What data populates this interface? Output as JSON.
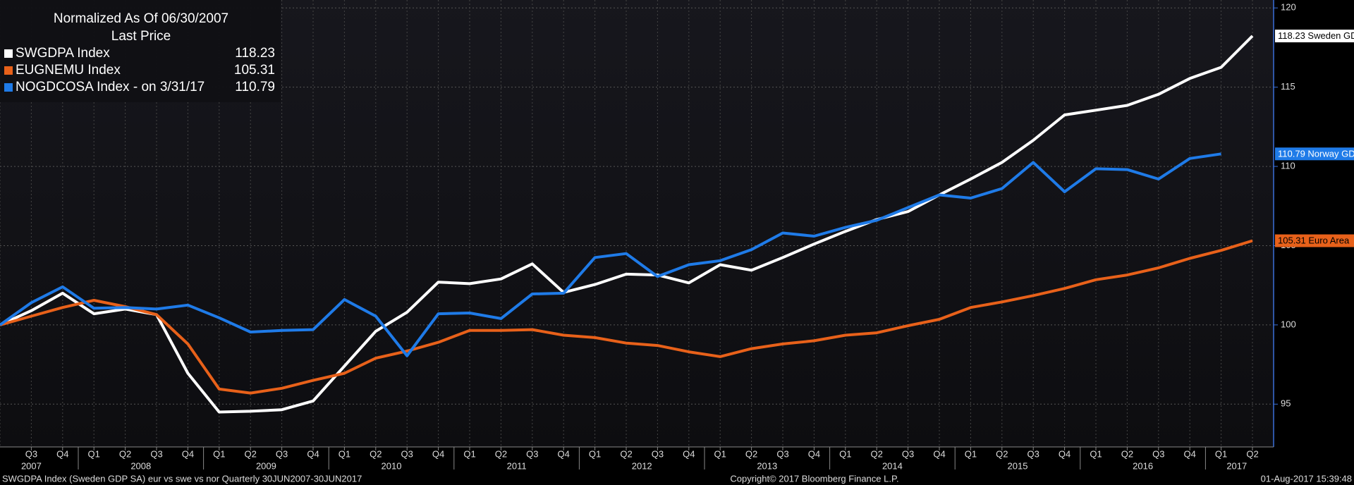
{
  "chart_data": {
    "type": "line",
    "legend_title": "Normalized As Of 06/30/2007",
    "legend_subtitle": "Last Price",
    "categories": [
      null,
      "Q3",
      "Q4",
      "Q1",
      "Q2",
      "Q3",
      "Q4",
      "Q1",
      "Q2",
      "Q3",
      "Q4",
      "Q1",
      "Q2",
      "Q3",
      "Q4",
      "Q1",
      "Q2",
      "Q3",
      "Q4",
      "Q1",
      "Q2",
      "Q3",
      "Q4",
      "Q1",
      "Q2",
      "Q3",
      "Q4",
      "Q1",
      "Q2",
      "Q3",
      "Q4",
      "Q1",
      "Q2",
      "Q3",
      "Q4",
      "Q1",
      "Q2",
      "Q3",
      "Q4",
      "Q1",
      "Q2"
    ],
    "years": [
      "2007",
      "2008",
      "2009",
      "2010",
      "2011",
      "2012",
      "2013",
      "2014",
      "2015",
      "2016",
      "2017"
    ],
    "ylim": [
      92.3,
      120.5
    ],
    "yticks": [
      95,
      100,
      105,
      110,
      115,
      120
    ],
    "grid": true,
    "series": [
      {
        "name": "SWGDPA Index",
        "tag": "Sweden GD",
        "color": "#ffffff",
        "values": [
          100,
          100.9,
          102.0,
          100.7,
          101.0,
          100.65,
          96.95,
          94.5,
          94.55,
          94.65,
          95.2,
          97.4,
          99.6,
          100.8,
          102.7,
          102.6,
          102.9,
          103.85,
          102.05,
          102.55,
          103.2,
          103.15,
          102.65,
          103.8,
          103.45,
          104.25,
          105.1,
          105.9,
          106.65,
          107.15,
          108.2,
          109.2,
          110.25,
          111.65,
          113.25,
          113.55,
          113.85,
          114.55,
          115.55,
          116.25,
          118.23
        ]
      },
      {
        "name": "EUGNEMU Index",
        "tag": "Euro Area",
        "color": "#e8611a",
        "values": [
          100,
          100.55,
          101.1,
          101.55,
          101.15,
          100.65,
          98.8,
          95.95,
          95.7,
          96.0,
          96.5,
          96.95,
          97.9,
          98.35,
          98.9,
          99.65,
          99.65,
          99.7,
          99.35,
          99.2,
          98.85,
          98.7,
          98.3,
          98.0,
          98.5,
          98.8,
          99.0,
          99.35,
          99.5,
          99.95,
          100.35,
          101.1,
          101.45,
          101.85,
          102.3,
          102.85,
          103.15,
          103.6,
          104.2,
          104.7,
          105.31
        ]
      },
      {
        "name": "NOGDCOSA Index -  on 3/31/17",
        "tag": "Norway GD",
        "color": "#1f7be8",
        "values": [
          100,
          101.4,
          102.4,
          101.05,
          101.1,
          101.0,
          101.25,
          100.45,
          99.55,
          99.65,
          99.7,
          101.6,
          100.55,
          98.05,
          100.7,
          100.75,
          100.4,
          101.95,
          102.0,
          104.25,
          104.5,
          103.05,
          103.8,
          104.05,
          104.75,
          105.8,
          105.6,
          106.15,
          106.6,
          107.4,
          108.2,
          108.0,
          108.6,
          110.25,
          108.4,
          109.85,
          109.8,
          109.2,
          110.5,
          110.79,
          null
        ]
      }
    ],
    "footer_left": "SWGDPA Index (Sweden GDP SA) eur vs swe vs nor  Quarterly 30JUN2007-30JUN2017",
    "footer_center": "Copyright© 2017 Bloomberg Finance L.P.",
    "footer_right": "01-Aug-2017 15:39:48"
  }
}
